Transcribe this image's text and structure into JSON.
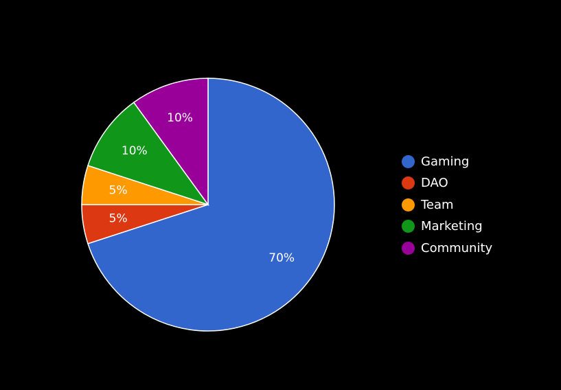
{
  "chart_data": {
    "type": "pie",
    "title": "",
    "categories": [
      "Gaming",
      "DAO",
      "Team",
      "Marketing",
      "Community"
    ],
    "values": [
      70,
      5,
      5,
      10,
      10
    ],
    "labels": [
      "70%",
      "5%",
      "5%",
      "10%",
      "10%"
    ],
    "colors": [
      "#3366cc",
      "#dc3912",
      "#ff9900",
      "#109618",
      "#990099"
    ],
    "start_angle_deg": 0,
    "direction": "clockwise",
    "legend_position": "right",
    "background": "#000000",
    "slice_border_color": "#ffffff"
  }
}
